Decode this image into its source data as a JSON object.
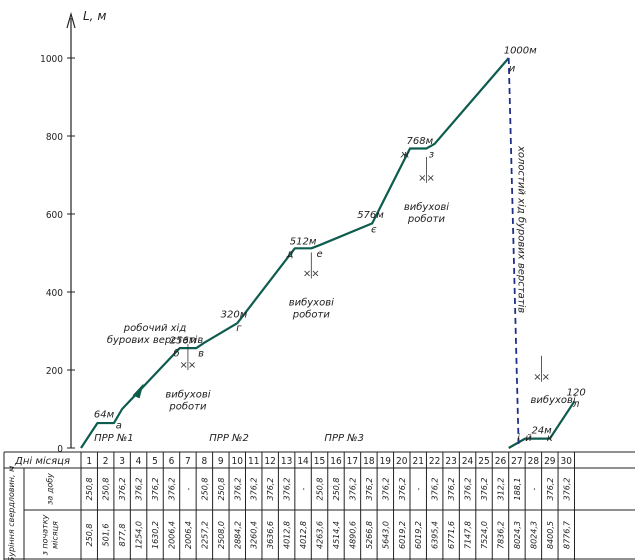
{
  "chart_data": {
    "type": "line",
    "ylabel": "L, м",
    "yticks": [
      0,
      200,
      400,
      600,
      800,
      1000
    ],
    "ylim": [
      0,
      1100
    ],
    "days": [
      "1",
      "2",
      "3",
      "4",
      "5",
      "6",
      "7",
      "8",
      "9",
      "10",
      "11",
      "12",
      "13",
      "14",
      "15",
      "16",
      "17",
      "18",
      "19",
      "20",
      "21",
      "22",
      "23",
      "24",
      "25",
      "26",
      "27",
      "28",
      "29",
      "30"
    ],
    "x": [
      0,
      1,
      2,
      2.5,
      6,
      7,
      7.5,
      9.5,
      13,
      14,
      14.5,
      17.7,
      20,
      21,
      21.5,
      26,
      26,
      27,
      27.5,
      28.5,
      30
    ],
    "y": [
      0,
      64,
      64,
      100,
      256,
      256,
      270,
      320,
      512,
      512,
      520,
      576,
      768,
      768,
      780,
      1000,
      0,
      24,
      24,
      24,
      120
    ],
    "return_line": {
      "x": [
        26,
        26
      ],
      "y": [
        1000,
        0
      ],
      "style": "dashed"
    },
    "point_labels": [
      {
        "text": "а",
        "x": 2.3,
        "y": 50
      },
      {
        "text": "б",
        "x": 5.8,
        "y": 235
      },
      {
        "text": "в",
        "x": 7.3,
        "y": 235
      },
      {
        "text": "г",
        "x": 9.6,
        "y": 300
      },
      {
        "text": "д",
        "x": 12.7,
        "y": 490
      },
      {
        "text": "е",
        "x": 14.5,
        "y": 490
      },
      {
        "text": "є",
        "x": 17.8,
        "y": 552
      },
      {
        "text": "ж",
        "x": 19.7,
        "y": 745
      },
      {
        "text": "з",
        "x": 21.3,
        "y": 745
      },
      {
        "text": "и",
        "x": 26.2,
        "y": 965
      },
      {
        "text": "і",
        "x": 26.6,
        "y": 18
      },
      {
        "text": "й",
        "x": 27.2,
        "y": 18
      },
      {
        "text": "к",
        "x": 28.5,
        "y": 18
      },
      {
        "text": "л",
        "x": 30.1,
        "y": 105
      }
    ],
    "value_labels": [
      {
        "text": "64м",
        "x": 1.4,
        "y": 78
      },
      {
        "text": "256м",
        "x": 6.2,
        "y": 268
      },
      {
        "text": "320м",
        "x": 9.3,
        "y": 335
      },
      {
        "text": "512м",
        "x": 13.5,
        "y": 522
      },
      {
        "text": "576м",
        "x": 17.6,
        "y": 590
      },
      {
        "text": "768м",
        "x": 20.6,
        "y": 780
      },
      {
        "text": "1000м",
        "x": 26.7,
        "y": 1012
      },
      {
        "text": "24м",
        "x": 28.0,
        "y": 37
      },
      {
        "text": "120",
        "x": 30.1,
        "y": 135
      }
    ],
    "annotations": [
      {
        "lines": [
          "робочий хід",
          "бурових верстатів"
        ],
        "x": 4.5,
        "y": 300
      },
      {
        "lines": [
          "вибухові",
          "роботи"
        ],
        "x": 6.5,
        "y": 130
      },
      {
        "lines": [
          "вибухові",
          "роботи"
        ],
        "x": 14.0,
        "y": 365
      },
      {
        "lines": [
          "вибухові",
          "роботи"
        ],
        "x": 21.0,
        "y": 610
      },
      {
        "lines": [
          "вибухові"
        ],
        "x": 28.7,
        "y": 115
      },
      {
        "lines": [
          "ПРР №1"
        ],
        "x": 2.0,
        "y": 18
      },
      {
        "lines": [
          "ПРР №2"
        ],
        "x": 9.0,
        "y": 18
      },
      {
        "lines": [
          "ПРР №3"
        ],
        "x": 16.0,
        "y": 18
      }
    ],
    "rotated_annotation": "холостий хід бурових верстатів"
  },
  "table": {
    "header_label": "Дні місяця",
    "row_group_label": "Буріння свердловин, м",
    "row1_label": [
      "за добу"
    ],
    "row2_label": [
      "з початку",
      "місяця"
    ],
    "daily": [
      "250,8",
      "250,8",
      "376,2",
      "376,2",
      "376,2",
      "376,2",
      "-",
      "250,8",
      "250,8",
      "376,2",
      "376,2",
      "376,2",
      "376,2",
      "-",
      "250,8",
      "250,8",
      "376,2",
      "376,2",
      "376,2",
      "376,2",
      "-",
      "376,2",
      "376,2",
      "376,2",
      "376,2",
      "312,2",
      "188,1",
      "-",
      "376,2",
      "376,2"
    ],
    "cumulative": [
      "250,8",
      "501,6",
      "877,8",
      "1254,0",
      "1630,2",
      "2006,4",
      "2006,4",
      "2257,2",
      "2508,0",
      "2884,2",
      "3260,4",
      "3636,6",
      "4012,8",
      "4012,8",
      "4263,6",
      "4514,4",
      "4890,6",
      "5266,8",
      "5643,0",
      "6019,2",
      "6019,2",
      "6395,4",
      "6771,6",
      "7147,8",
      "7524,0",
      "7836,2",
      "8024,3",
      "8024,3",
      "8400,5",
      "8776,7"
    ]
  }
}
